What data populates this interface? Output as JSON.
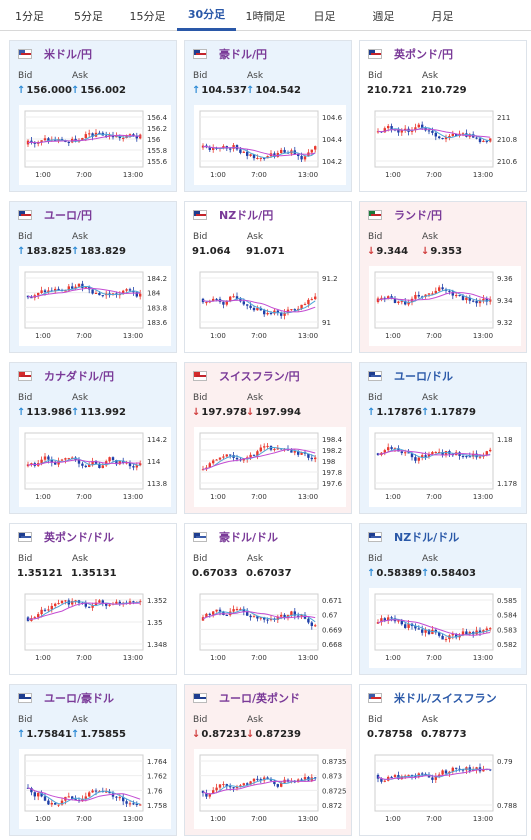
{
  "tabs": [
    "1分足",
    "5分足",
    "15分足",
    "30分足",
    "1時間足",
    "日足",
    "週足",
    "月足"
  ],
  "active_tab": "30分足",
  "labels": {
    "bid": "Bid",
    "ask": "Ask"
  },
  "x_axis_labels": [
    "1:00",
    "7:00",
    "13:00"
  ],
  "colors": {
    "up_candle": "#e8392f",
    "down_candle": "#1f3fa8",
    "ma_short": "#4fa6d8",
    "ma_long": "#c34bd2",
    "up_arrow": "#2e8bd6",
    "down_arrow": "#d03c3c"
  },
  "cards": [
    {
      "pair": "米ドル/円",
      "bid": "156.000",
      "ask": "156.002",
      "dir": "up",
      "flags": [
        "#3b5ba9",
        "#c4242b"
      ],
      "y_ticks": [
        "156.4",
        "156.2",
        "156",
        "155.8",
        "155.6"
      ],
      "icon": "us-jp-flag-icon"
    },
    {
      "pair": "豪ドル/円",
      "bid": "104.537",
      "ask": "104.542",
      "dir": "up",
      "flags": [
        "#1e3d8f",
        "#c4242b"
      ],
      "y_ticks": [
        "104.6",
        "104.4",
        "104.2"
      ],
      "icon": "au-jp-flag-icon"
    },
    {
      "pair": "英ポンド/円",
      "bid": "210.721",
      "ask": "210.729",
      "dir": "none",
      "flags": [
        "#1e3d8f",
        "#c4242b"
      ],
      "y_ticks": [
        "211",
        "210.8",
        "210.6"
      ],
      "icon": "gb-jp-flag-icon"
    },
    {
      "pair": "ユーロ/円",
      "bid": "183.825",
      "ask": "183.829",
      "dir": "up",
      "flags": [
        "#1e3d8f",
        "#c4242b"
      ],
      "y_ticks": [
        "184.2",
        "184",
        "183.8",
        "183.6"
      ],
      "icon": "eu-jp-flag-icon"
    },
    {
      "pair": "NZドル/円",
      "bid": "91.064",
      "ask": "91.071",
      "dir": "none",
      "flags": [
        "#1e3d8f",
        "#c4242b"
      ],
      "y_ticks": [
        "91.2",
        "91"
      ],
      "icon": "nz-jp-flag-icon"
    },
    {
      "pair": "ランド/円",
      "bid": "9.344",
      "ask": "9.353",
      "dir": "down",
      "flags": [
        "#1a7a3a",
        "#c4242b"
      ],
      "y_ticks": [
        "9.36",
        "9.34",
        "9.32"
      ],
      "icon": "za-jp-flag-icon"
    },
    {
      "pair": "カナダドル/円",
      "bid": "113.986",
      "ask": "113.992",
      "dir": "up",
      "flags": [
        "#d42b2b",
        "#c4242b"
      ],
      "y_ticks": [
        "114.2",
        "114",
        "113.8"
      ],
      "icon": "ca-jp-flag-icon"
    },
    {
      "pair": "スイスフラン/円",
      "bid": "197.978",
      "ask": "197.994",
      "dir": "down",
      "flags": [
        "#d42b2b",
        "#c4242b"
      ],
      "y_ticks": [
        "198.4",
        "198.2",
        "198",
        "197.8",
        "197.6"
      ],
      "icon": "ch-jp-flag-icon"
    },
    {
      "pair": "ユーロ/ドル",
      "bid": "1.17876",
      "ask": "1.17879",
      "dir": "up",
      "flags": [
        "#1e3d8f",
        "#3b5ba9"
      ],
      "y_ticks": [
        "1.18",
        "1.178"
      ],
      "icon": "eu-us-flag-icon"
    },
    {
      "pair": "英ポンド/ドル",
      "bid": "1.35121",
      "ask": "1.35131",
      "dir": "none",
      "flags": [
        "#1e3d8f",
        "#3b5ba9"
      ],
      "y_ticks": [
        "1.352",
        "1.35",
        "1.348"
      ],
      "icon": "gb-us-flag-icon"
    },
    {
      "pair": "豪ドル/ドル",
      "bid": "0.67033",
      "ask": "0.67037",
      "dir": "none",
      "flags": [
        "#1e3d8f",
        "#3b5ba9"
      ],
      "y_ticks": [
        "0.671",
        "0.67",
        "0.669",
        "0.668"
      ],
      "icon": "au-us-flag-icon"
    },
    {
      "pair": "NZドル/ドル",
      "bid": "0.58389",
      "ask": "0.58403",
      "dir": "up",
      "flags": [
        "#1e3d8f",
        "#3b5ba9"
      ],
      "y_ticks": [
        "0.585",
        "0.584",
        "0.583",
        "0.582"
      ],
      "icon": "nz-us-flag-icon"
    },
    {
      "pair": "ユーロ/豪ドル",
      "bid": "1.75841",
      "ask": "1.75855",
      "dir": "up",
      "flags": [
        "#1e3d8f",
        "#1e3d8f"
      ],
      "y_ticks": [
        "1.764",
        "1.762",
        "1.76",
        "1.758"
      ],
      "icon": "eu-au-flag-icon"
    },
    {
      "pair": "ユーロ/英ポンド",
      "bid": "0.87231",
      "ask": "0.87239",
      "dir": "down",
      "flags": [
        "#1e3d8f",
        "#1e3d8f"
      ],
      "y_ticks": [
        "0.8735",
        "0.873",
        "0.8725",
        "0.872"
      ],
      "icon": "eu-gb-flag-icon"
    },
    {
      "pair": "米ドル/スイスフラン",
      "bid": "0.78758",
      "ask": "0.78773",
      "dir": "none",
      "flags": [
        "#3b5ba9",
        "#d42b2b"
      ],
      "y_ticks": [
        "0.79",
        "0.788"
      ],
      "icon": "us-ch-flag-icon"
    }
  ]
}
